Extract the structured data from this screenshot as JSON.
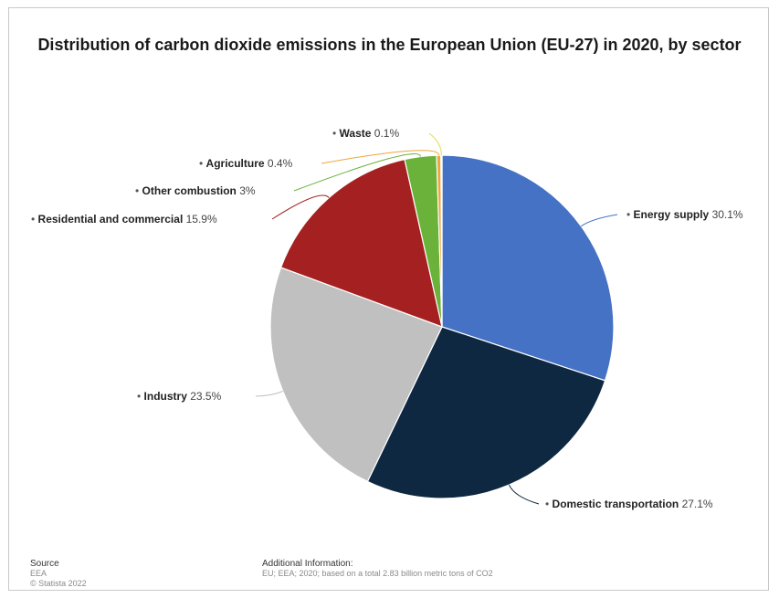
{
  "chart_data": {
    "type": "pie",
    "title": "Distribution of carbon dioxide emissions in the European Union (EU-27) in 2020, by sector",
    "unit": "%",
    "slices": [
      {
        "label": "Energy supply",
        "value": 30.1,
        "value_text": "30.1%",
        "color": "#4572c4"
      },
      {
        "label": "Domestic transportation",
        "value": 27.1,
        "value_text": "27.1%",
        "color": "#0e2841"
      },
      {
        "label": "Industry",
        "value": 23.5,
        "value_text": "23.5%",
        "color": "#c0c0c0"
      },
      {
        "label": "Residential and commercial",
        "value": 15.9,
        "value_text": "15.9%",
        "color": "#a52121"
      },
      {
        "label": "Other combustion",
        "value": 3,
        "value_text": "3%",
        "color": "#6ab23a"
      },
      {
        "label": "Agriculture",
        "value": 0.4,
        "value_text": "0.4%",
        "color": "#f0a43c"
      },
      {
        "label": "Waste",
        "value": 0.1,
        "value_text": "0.1%",
        "color": "#e8d84c"
      }
    ]
  },
  "footer": {
    "source_heading": "Source",
    "source_lines": [
      "EEA",
      "© Statista 2022"
    ],
    "info_heading": "Additional Information:",
    "info_text": "EU; EEA; 2020; based on a total 2.83 billion metric tons of CO2"
  }
}
